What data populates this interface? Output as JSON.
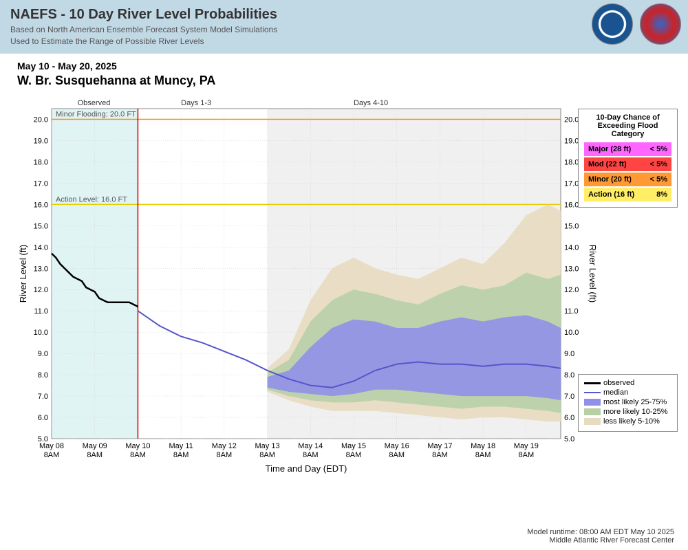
{
  "header": {
    "title": "NAEFS - 10 Day River Level Probabilities",
    "sub1": "Based on North American Ensemble Forecast System Model Simulations",
    "sub2": "Used to Estimate the Range of Possible River Levels"
  },
  "subheader": {
    "date_range": "May 10 - May 20, 2025",
    "location": "W. Br. Susquehanna at Muncy, PA"
  },
  "periods": {
    "observed": "Observed",
    "days13": "Days 1-3",
    "days410": "Days 4-10"
  },
  "chart": {
    "type": "line-band",
    "ylabel_left": "River Level (ft)",
    "ylabel_right": "River Level (ft)",
    "xlabel": "Time and Day (EDT)",
    "ylim": [
      5.0,
      20.5
    ],
    "yticks": [
      5.0,
      6.0,
      7.0,
      8.0,
      9.0,
      10.0,
      11.0,
      12.0,
      13.0,
      14.0,
      15.0,
      16.0,
      17.0,
      18.0,
      19.0,
      20.0
    ],
    "xticks": [
      "May 08\n8AM",
      "May 09\n8AM",
      "May 10\n8AM",
      "May 11\n8AM",
      "May 12\n8AM",
      "May 13\n8AM",
      "May 14\n8AM",
      "May 15\n8AM",
      "May 16\n8AM",
      "May 17\n8AM",
      "May 18\n8AM",
      "May 19\n8AM"
    ],
    "n_x": 12,
    "observed_split_x": 2,
    "forecast_split_x": 5,
    "background_color": "#ffffff",
    "observed_bg": "#e0f4f4",
    "forecast_bg": "#f0f0f0",
    "grid_color": "#cccccc",
    "minor_flood_line": {
      "y": 20.0,
      "label": "Minor Flooding: 20.0 FT",
      "color": "#ff8800"
    },
    "action_line": {
      "y": 16.0,
      "label": "Action Level: 16.0 FT",
      "color": "#e6cc00"
    },
    "now_line_color": "#cc0000",
    "observed": {
      "color": "#000000",
      "width": 2.5,
      "x": [
        0,
        0.1,
        0.2,
        0.3,
        0.4,
        0.5,
        0.6,
        0.7,
        0.8,
        0.9,
        1.0,
        1.1,
        1.2,
        1.3,
        1.4,
        1.5,
        1.6,
        1.7,
        1.8,
        1.9,
        2.0
      ],
      "y": [
        13.7,
        13.5,
        13.2,
        13.0,
        12.8,
        12.6,
        12.5,
        12.4,
        12.1,
        12.0,
        11.9,
        11.6,
        11.5,
        11.4,
        11.4,
        11.4,
        11.4,
        11.4,
        11.4,
        11.3,
        11.2
      ]
    },
    "median": {
      "color": "#5555cc",
      "width": 2,
      "x": [
        2.0,
        2.5,
        3.0,
        3.5,
        4.0,
        4.5,
        5.0,
        5.5,
        6.0,
        6.5,
        7.0,
        7.5,
        8.0,
        8.5,
        9.0,
        9.5,
        10.0,
        10.5,
        11.0,
        11.5,
        11.8
      ],
      "y": [
        11.0,
        10.3,
        9.8,
        9.5,
        9.1,
        8.7,
        8.2,
        7.8,
        7.5,
        7.4,
        7.7,
        8.2,
        8.5,
        8.6,
        8.5,
        8.5,
        8.4,
        8.5,
        8.5,
        8.4,
        8.3
      ]
    },
    "band25_75": {
      "fill": "#9090e8",
      "x": [
        5.0,
        5.5,
        6.0,
        6.5,
        7.0,
        7.5,
        8.0,
        8.5,
        9.0,
        9.5,
        10.0,
        10.5,
        11.0,
        11.5,
        11.8
      ],
      "lo": [
        7.4,
        7.2,
        7.1,
        7.0,
        7.1,
        7.3,
        7.3,
        7.2,
        7.1,
        7.0,
        7.0,
        7.0,
        7.0,
        6.9,
        6.8
      ],
      "hi": [
        7.9,
        8.2,
        9.3,
        10.2,
        10.6,
        10.5,
        10.2,
        10.2,
        10.5,
        10.7,
        10.5,
        10.7,
        10.8,
        10.5,
        10.2
      ]
    },
    "band10_25": {
      "fill": "#b8d0a8",
      "x": [
        5.0,
        5.5,
        6.0,
        6.5,
        7.0,
        7.5,
        8.0,
        8.5,
        9.0,
        9.5,
        10.0,
        10.5,
        11.0,
        11.5,
        11.8
      ],
      "lo": [
        7.3,
        7.0,
        6.8,
        6.7,
        6.7,
        6.8,
        6.7,
        6.6,
        6.5,
        6.4,
        6.5,
        6.5,
        6.4,
        6.3,
        6.2
      ],
      "hi": [
        8.1,
        8.7,
        10.5,
        11.5,
        12.0,
        11.8,
        11.5,
        11.3,
        11.8,
        12.2,
        12.0,
        12.2,
        12.8,
        12.5,
        12.7
      ]
    },
    "band5_10": {
      "fill": "#e8dcc0",
      "x": [
        5.0,
        5.5,
        6.0,
        6.5,
        7.0,
        7.5,
        8.0,
        8.5,
        9.0,
        9.5,
        10.0,
        10.5,
        11.0,
        11.5,
        11.8
      ],
      "lo": [
        7.2,
        6.8,
        6.5,
        6.3,
        6.3,
        6.3,
        6.2,
        6.1,
        6.0,
        5.9,
        6.0,
        6.0,
        5.9,
        5.8,
        5.8
      ],
      "hi": [
        8.3,
        9.2,
        11.5,
        13.0,
        13.5,
        13.0,
        12.7,
        12.5,
        13.0,
        13.5,
        13.2,
        14.2,
        15.5,
        16.0,
        15.7
      ]
    }
  },
  "flood_box": {
    "title": "10-Day Chance of Exceeding Flood Category",
    "rows": [
      {
        "label": "Major (28 ft)",
        "pct": "< 5%",
        "bg": "#ff66ff"
      },
      {
        "label": "Mod (22 ft)",
        "pct": "< 5%",
        "bg": "#ff4444"
      },
      {
        "label": "Minor (20 ft)",
        "pct": "< 5%",
        "bg": "#ff9933"
      },
      {
        "label": "Action (16 ft)",
        "pct": "8%",
        "bg": "#ffee66"
      }
    ]
  },
  "legend": {
    "observed": "observed",
    "median": "median",
    "b1": "most likely 25-75%",
    "b2": "more likely 10-25%",
    "b3": "less likely 5-10%"
  },
  "footer": {
    "runtime": "Model runtime: 08:00 AM EDT May 10 2025",
    "center": "Middle Atlantic River Forecast Center"
  }
}
